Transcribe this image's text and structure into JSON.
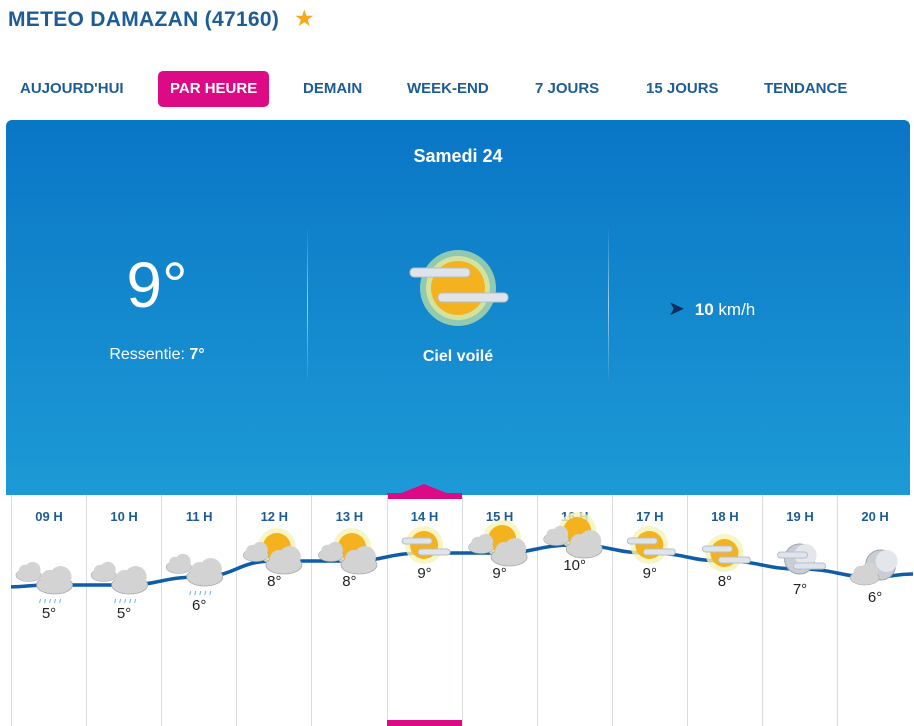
{
  "header": {
    "title": "METEO DAMAZAN (47160)",
    "favorite_icon": "star-icon",
    "favorite_color": "#f5a91b"
  },
  "tabs": [
    {
      "label": "AUJOURD'HUI"
    },
    {
      "label": "PAR HEURE",
      "active": true
    },
    {
      "label": "DEMAIN"
    },
    {
      "label": "WEEK-END"
    },
    {
      "label": "7 JOURS"
    },
    {
      "label": "15 JOURS"
    },
    {
      "label": "TENDANCE"
    }
  ],
  "current": {
    "day": "Samedi 24",
    "temperature": "9°",
    "feels_label": "Ressentie:",
    "feels_value": "7°",
    "condition": "Ciel voilé",
    "condition_icon": "veiled-sun-icon",
    "wind_value": "10",
    "wind_unit": "km/h",
    "wind_icon": "wind-direction-arrow-icon"
  },
  "hourly": [
    {
      "hour": "09 H",
      "temp": "5°",
      "t": 5,
      "icon": "rain-cloud"
    },
    {
      "hour": "10 H",
      "temp": "5°",
      "t": 5,
      "icon": "rain-cloud"
    },
    {
      "hour": "11 H",
      "temp": "6°",
      "t": 6,
      "icon": "rain-cloud"
    },
    {
      "hour": "12 H",
      "temp": "8°",
      "t": 8,
      "icon": "sun-cloud"
    },
    {
      "hour": "13 H",
      "temp": "8°",
      "t": 8,
      "icon": "sun-cloud"
    },
    {
      "hour": "14 H",
      "temp": "9°",
      "t": 9,
      "icon": "veiled-sun",
      "selected": true
    },
    {
      "hour": "15 H",
      "temp": "9°",
      "t": 9,
      "icon": "sun-cloud"
    },
    {
      "hour": "16 H",
      "temp": "10°",
      "t": 10,
      "icon": "sun-cloud"
    },
    {
      "hour": "17 H",
      "temp": "9°",
      "t": 9,
      "icon": "veiled-sun"
    },
    {
      "hour": "18 H",
      "temp": "8°",
      "t": 8,
      "icon": "veiled-sun"
    },
    {
      "hour": "19 H",
      "temp": "7°",
      "t": 7,
      "icon": "veiled-moon"
    },
    {
      "hour": "20 H",
      "temp": "6°",
      "t": 6,
      "icon": "moon-cloud"
    }
  ],
  "colors": {
    "accent": "#dc0a85",
    "primary": "#1d5c96",
    "curve": "#0f5ca8"
  }
}
